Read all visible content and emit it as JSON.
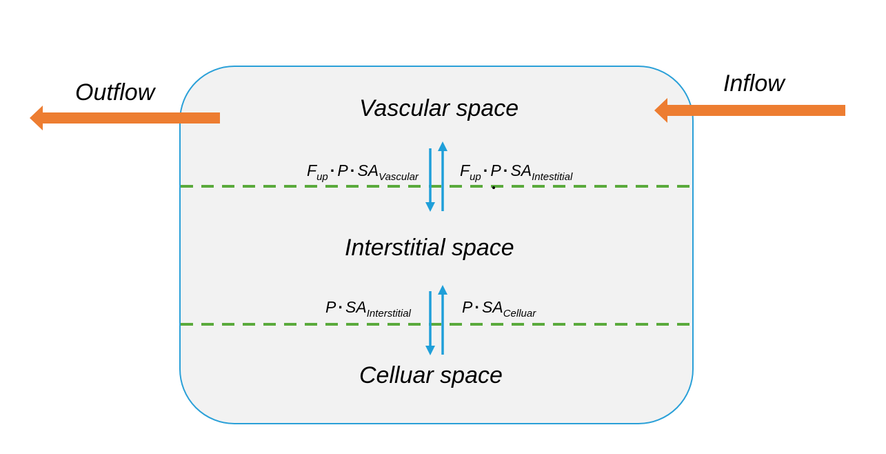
{
  "flows": {
    "outflow": "Outflow",
    "inflow": "Inflow"
  },
  "spaces": {
    "vascular": "Vascular space",
    "interstitial": "Interstitial space",
    "cellular": "Celluar space"
  },
  "transport": {
    "vascular_to_interstitial": {
      "f": "F",
      "f_sub": "up",
      "dot": "·",
      "p": "P",
      "sa": "SA",
      "sa_sub": "Vascular"
    },
    "interstitial_to_vascular": {
      "f": "F",
      "f_sub": "up",
      "dot": "·",
      "p": "P",
      "sa": "SA",
      "sa_sub": "Intestitial"
    },
    "interstitial_to_cellular": {
      "p": "P",
      "dot": "·",
      "sa": "SA",
      "sa_sub": "Interstitial"
    },
    "cellular_to_interstitial": {
      "p": "P",
      "dot": "·",
      "sa": "SA",
      "sa_sub": "Celluar"
    }
  },
  "colors": {
    "compartment_border": "#2aa0d8",
    "compartment_fill": "#f2f2f2",
    "flow_arrow": "#ed7d31",
    "membrane_line": "#5aaa3c",
    "exchange_arrow": "#1f9fd9"
  }
}
